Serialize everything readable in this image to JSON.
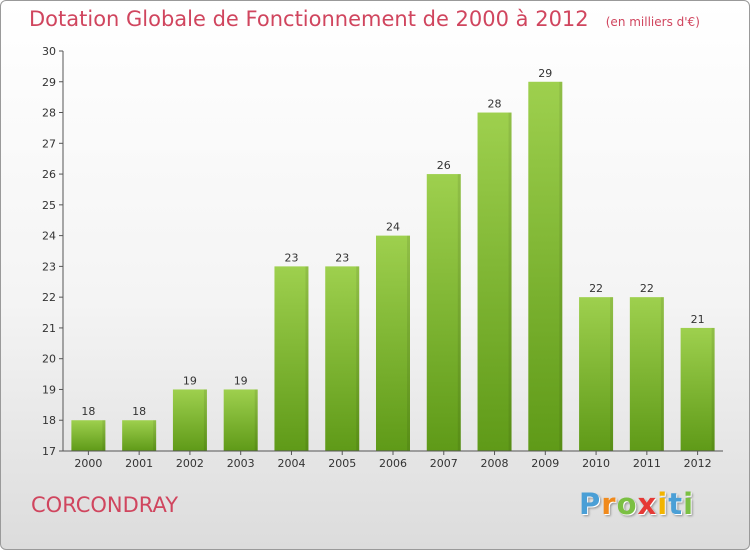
{
  "header": {
    "title": "Dotation Globale de Fonctionnement de 2000 à 2012",
    "unit": "(en milliers d'€)"
  },
  "footer": {
    "commune": "CORCONDRAY",
    "logo": {
      "letters": [
        "P",
        "r",
        "o",
        "x",
        "i",
        "t",
        "i"
      ],
      "colors": [
        "#4a9fd6",
        "#f08a1c",
        "#7bc043",
        "#e53935",
        "#f2b400",
        "#4a9fd6",
        "#7bc043"
      ]
    }
  },
  "chart_data": {
    "type": "bar",
    "title": "Dotation Globale de Fonctionnement de 2000 à 2012",
    "subtitle": "(en milliers d'€)",
    "categories": [
      "2000",
      "2001",
      "2002",
      "2003",
      "2004",
      "2005",
      "2006",
      "2007",
      "2008",
      "2009",
      "2010",
      "2011",
      "2012"
    ],
    "values": [
      18,
      18,
      19,
      19,
      23,
      23,
      24,
      26,
      28,
      29,
      22,
      22,
      21
    ],
    "ylim": [
      17,
      30
    ],
    "yticks": [
      17,
      18,
      19,
      20,
      21,
      22,
      23,
      24,
      25,
      26,
      27,
      28,
      29,
      30
    ],
    "grid": false,
    "legend": "none",
    "bar_color_top": "#9ed04e",
    "bar_color_bottom": "#5f9a18"
  }
}
